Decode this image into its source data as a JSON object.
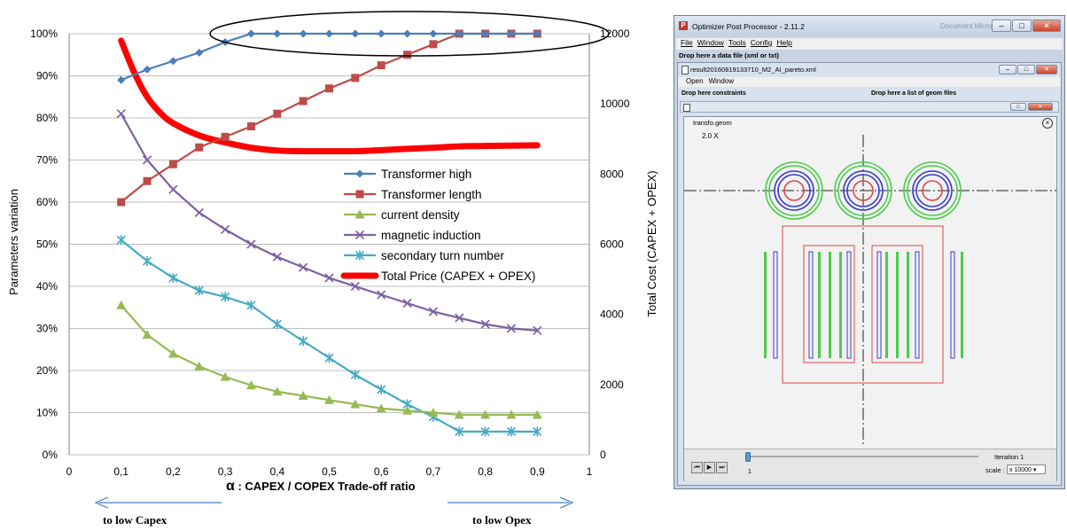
{
  "chart_data": {
    "type": "line",
    "x": [
      0.1,
      0.15,
      0.2,
      0.25,
      0.3,
      0.35,
      0.4,
      0.45,
      0.5,
      0.55,
      0.6,
      0.65,
      0.7,
      0.75,
      0.8,
      0.85,
      0.9
    ],
    "xlim": [
      0,
      1
    ],
    "xticks": [
      "0",
      "0,1",
      "0,2",
      "0,3",
      "0,4",
      "0,5",
      "0,6",
      "0,7",
      "0,8",
      "0,9",
      "1"
    ],
    "xlabel_alpha": "α",
    "xlabel": " : CAPEX / COPEX Trade-off ratio",
    "ylabel": "Parameters variation",
    "ylim": [
      0,
      100
    ],
    "yticks": [
      "0%",
      "10%",
      "20%",
      "30%",
      "40%",
      "50%",
      "60%",
      "70%",
      "80%",
      "90%",
      "100%"
    ],
    "y2label": "Total Cost  (CAPEX + OPEX)",
    "y2lim": [
      0,
      12000
    ],
    "y2ticks": [
      "0",
      "2000",
      "4000",
      "6000",
      "8000",
      "10000",
      "12000"
    ],
    "legend_position": "center-right",
    "series": [
      {
        "name": "Transformer high",
        "color": "#4a7ebb",
        "marker": "diamond",
        "values": [
          89,
          91.5,
          93.5,
          95.5,
          98,
          100,
          100,
          100,
          100,
          100,
          100,
          100,
          100,
          100,
          100,
          100,
          100
        ]
      },
      {
        "name": "Transformer length",
        "color": "#be4b48",
        "marker": "square",
        "values": [
          60,
          65,
          69,
          73,
          75.5,
          78,
          81,
          84,
          87,
          89.5,
          92.5,
          95,
          97.5,
          100,
          100,
          100,
          100
        ]
      },
      {
        "name": "current density",
        "color": "#98b954",
        "marker": "triangle",
        "values": [
          35.5,
          28.5,
          24,
          21,
          18.5,
          16.5,
          15,
          14,
          13,
          12,
          11,
          10.5,
          10,
          9.5,
          9.5,
          9.5,
          9.5
        ]
      },
      {
        "name": "magnetic induction",
        "color": "#7d60a0",
        "marker": "x",
        "values": [
          81,
          70,
          63,
          57.5,
          53.5,
          50,
          47,
          44.5,
          42,
          40,
          38,
          36,
          34,
          32.5,
          31,
          30,
          29.5
        ]
      },
      {
        "name": "secondary turn number",
        "color": "#46aac5",
        "marker": "asterisk",
        "values": [
          51,
          46,
          42,
          39,
          37.5,
          35.5,
          31,
          27,
          23,
          19,
          15.5,
          12,
          9,
          5.5,
          5.5,
          5.5,
          5.5
        ]
      },
      {
        "name": "Total Price (CAPEX + OPEX)",
        "color": "#ff0000",
        "marker": "none",
        "axis": "right",
        "x": [
          0.1,
          0.125,
          0.15,
          0.175,
          0.2,
          0.25,
          0.3,
          0.35,
          0.4,
          0.45,
          0.5,
          0.55,
          0.6,
          0.65,
          0.7,
          0.75,
          0.8,
          0.85,
          0.9
        ],
        "values": [
          11800,
          10900,
          10200,
          9750,
          9450,
          9100,
          8900,
          8750,
          8670,
          8650,
          8650,
          8650,
          8680,
          8720,
          8750,
          8790,
          8800,
          8810,
          8820
        ]
      }
    ],
    "annotations": {
      "left_arrow_text": "to low Capex",
      "right_arrow_text": "to low Opex",
      "arrow_color": "#4a7ebb",
      "highlight_ellipse": "around the saturated Transformer high points at 100%"
    }
  },
  "window": {
    "title": "Optimizer Post Processor - 2.11.2",
    "ghost_text": "Document   Micros",
    "menu": [
      "File",
      "Window",
      "Tools",
      "Config",
      "Help"
    ],
    "drop_data": "Drop here a data file (xml or txt)",
    "inner": {
      "title": "result20160819133710_M2_AI_pareto.xml",
      "menu": [
        "Open",
        "Window"
      ],
      "drop_constraints": "Drop here constraints",
      "drop_geom": "Drop here a list of geom files",
      "geom": {
        "title": "transfo.geom",
        "zoom": "2.0 X",
        "slider_value": "1",
        "iteration": "Iteration 1",
        "scale_label": "scale :",
        "scale_value": "x 10000"
      }
    }
  },
  "colors": {
    "geom_red": "#e04545",
    "geom_blue": "#3a3ad0",
    "geom_green": "#4ccc4c",
    "window_frame": "#c8d4e3"
  }
}
